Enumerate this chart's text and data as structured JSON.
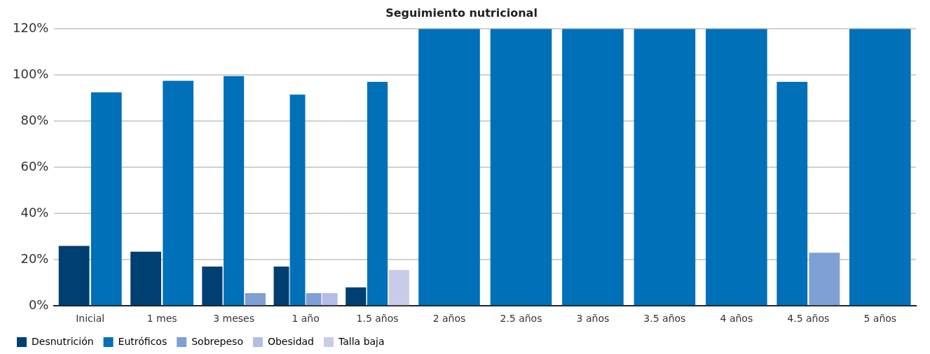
{
  "chart_data": {
    "type": "bar",
    "title": "Seguimiento nutricional",
    "categories": [
      "Inicial",
      "1 mes",
      "3 meses",
      "1 año",
      "1.5 años",
      "2 años",
      "2.5 años",
      "3 años",
      "3.5 años",
      "4 años",
      "4.5 años",
      "5 años"
    ],
    "series": [
      {
        "name": "Desnutrición",
        "color": "#003f72",
        "values": [
          26,
          23.5,
          17,
          17,
          8,
          null,
          null,
          null,
          null,
          null,
          null,
          null
        ]
      },
      {
        "name": "Eutróficos",
        "color": "#0070b8",
        "values": [
          92.5,
          97.5,
          99.5,
          91.5,
          97,
          120,
          120,
          120,
          120,
          120,
          97,
          120
        ]
      },
      {
        "name": "Sobrepeso",
        "color": "#7fa0d4",
        "values": [
          null,
          null,
          5.5,
          5.5,
          null,
          null,
          null,
          null,
          null,
          null,
          23,
          null
        ]
      },
      {
        "name": "Obesidad",
        "color": "#b3bde6",
        "values": [
          null,
          null,
          null,
          5.5,
          null,
          null,
          null,
          null,
          null,
          null,
          null,
          null
        ]
      },
      {
        "name": "Talla baja",
        "color": "#c8cce8",
        "values": [
          null,
          null,
          null,
          null,
          15.5,
          null,
          null,
          null,
          null,
          null,
          null,
          null
        ]
      }
    ],
    "ylim": [
      0,
      120
    ],
    "yticks": [
      {
        "value": 0,
        "label": "0%"
      },
      {
        "value": 20,
        "label": "20%"
      },
      {
        "value": 40,
        "label": "40%"
      },
      {
        "value": 60,
        "label": "60%"
      },
      {
        "value": 80,
        "label": "80%"
      },
      {
        "value": 100,
        "label": "100%"
      },
      {
        "value": 120,
        "label": "120%"
      }
    ],
    "grid": "y",
    "legend": "bottom left"
  }
}
